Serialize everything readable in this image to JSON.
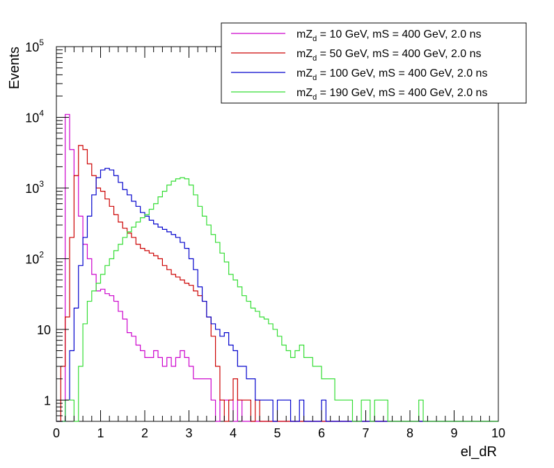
{
  "chart_data": {
    "type": "line",
    "title": "",
    "xlabel": "el_dR",
    "ylabel": "Events",
    "xlim": [
      0,
      10
    ],
    "ylim": [
      0.5,
      100000
    ],
    "yscale": "log",
    "bin_width": 0.1,
    "x_ticks": [
      "0",
      "1",
      "2",
      "3",
      "4",
      "5",
      "6",
      "7",
      "8",
      "9",
      "10"
    ],
    "y_ticks": [
      {
        "value": 1,
        "base": "1",
        "exp": ""
      },
      {
        "value": 10,
        "base": "10",
        "exp": ""
      },
      {
        "value": 100,
        "base": "10",
        "exp": "2"
      },
      {
        "value": 1000,
        "base": "10",
        "exp": "3"
      },
      {
        "value": 10000,
        "base": "10",
        "exp": "4"
      },
      {
        "value": 100000,
        "base": "10",
        "exp": "5"
      }
    ],
    "legend_position": "top-right",
    "series": [
      {
        "name": "mZd = 10 GeV, mS = 400 GeV, 2.0 ns",
        "legend_main": "mZ",
        "legend_sub": "d",
        "legend_rest": " = 10 GeV, mS = 400 GeV, 2.0 ns",
        "color": "#cc00cc",
        "values": [
          0,
          0,
          11000,
          3500,
          1500,
          400,
          160,
          100,
          60,
          35,
          37,
          32,
          30,
          25,
          18,
          14,
          9,
          8,
          6,
          5,
          4,
          4,
          5,
          4,
          3,
          4,
          3,
          4,
          5,
          4,
          3,
          2,
          2,
          2,
          2,
          1,
          0,
          1,
          1,
          1,
          0,
          1,
          0,
          0,
          0,
          0,
          0,
          0,
          0,
          0,
          0,
          0,
          0,
          0,
          0,
          0,
          0,
          0,
          0,
          0,
          0,
          0,
          0,
          0,
          0,
          0,
          0,
          0,
          0,
          0,
          0,
          0,
          0,
          0,
          0,
          0,
          0,
          0,
          0,
          0,
          0,
          0,
          0,
          0,
          0,
          0,
          0,
          0,
          0,
          0,
          0,
          0,
          0,
          0,
          0,
          0,
          0,
          0,
          0,
          0
        ]
      },
      {
        "name": "mZd = 50 GeV, mS = 400 GeV, 2.0 ns",
        "legend_main": "mZ",
        "legend_sub": "d",
        "legend_rest": " = 50 GeV, mS = 400 GeV, 2.0 ns",
        "color": "#cc0000",
        "values": [
          0,
          3,
          15,
          200,
          1500,
          4000,
          3500,
          2200,
          1500,
          1000,
          900,
          700,
          550,
          420,
          330,
          270,
          230,
          200,
          160,
          140,
          130,
          120,
          110,
          100,
          80,
          70,
          60,
          55,
          50,
          45,
          42,
          35,
          30,
          25,
          15,
          8,
          3,
          1,
          0,
          1,
          2,
          1,
          1,
          1,
          0,
          1,
          0,
          0,
          0,
          0,
          0,
          0,
          0,
          0,
          0,
          0,
          0,
          0,
          0,
          0,
          0,
          0,
          0,
          0,
          0,
          0,
          0,
          0,
          0,
          0,
          0,
          0,
          0,
          0,
          0,
          0,
          0,
          0,
          0,
          0,
          0,
          0,
          0,
          0,
          0,
          0,
          0,
          0,
          0,
          0,
          0,
          0,
          0,
          0,
          0,
          0,
          0,
          0,
          0,
          0
        ]
      },
      {
        "name": "mZd = 100 GeV, mS = 400 GeV, 2.0 ns",
        "legend_main": "mZ",
        "legend_sub": "d",
        "legend_rest": " = 100 GeV, mS = 400 GeV, 2.0 ns",
        "color": "#0000cc",
        "values": [
          0,
          0,
          1,
          5,
          20,
          80,
          200,
          400,
          800,
          1400,
          1800,
          1900,
          1800,
          1500,
          1200,
          950,
          800,
          650,
          550,
          450,
          400,
          350,
          310,
          280,
          260,
          240,
          220,
          200,
          170,
          140,
          100,
          70,
          40,
          25,
          15,
          12,
          10,
          8,
          9,
          6,
          5,
          3,
          3,
          2,
          2,
          1,
          1,
          1,
          1,
          0,
          1,
          1,
          1,
          0,
          0,
          1,
          0,
          0,
          0,
          0,
          1,
          0,
          0,
          0,
          0,
          0,
          0,
          0,
          0,
          0,
          0,
          0,
          0,
          0,
          0,
          0,
          0,
          0,
          0,
          0,
          0,
          0,
          0,
          0,
          0,
          0,
          0,
          0,
          0,
          0,
          0,
          0,
          0,
          0,
          0,
          0,
          0,
          0,
          0,
          0
        ]
      },
      {
        "name": "mZd = 190 GeV, mS = 400 GeV, 2.0 ns",
        "legend_main": "mZ",
        "legend_sub": "d",
        "legend_rest": " = 190 GeV, mS = 400 GeV, 2.0 ns",
        "color": "#33dd33",
        "values": [
          0,
          0,
          1,
          1,
          0,
          3,
          12,
          25,
          35,
          45,
          60,
          80,
          100,
          130,
          160,
          200,
          240,
          280,
          330,
          380,
          420,
          500,
          600,
          750,
          900,
          1100,
          1250,
          1350,
          1400,
          1350,
          1100,
          800,
          550,
          400,
          300,
          220,
          170,
          120,
          90,
          60,
          50,
          40,
          30,
          25,
          20,
          18,
          15,
          14,
          12,
          10,
          8,
          6,
          5,
          4,
          5,
          6,
          4,
          4,
          3,
          3,
          2,
          2,
          2,
          1,
          1,
          1,
          1,
          0,
          0,
          1,
          1,
          0,
          1,
          1,
          1,
          0,
          0,
          0,
          0,
          0,
          0,
          0,
          1,
          0,
          0,
          0,
          0,
          0,
          0,
          0,
          0,
          0,
          0,
          0,
          0,
          0,
          0,
          0,
          0,
          0
        ]
      }
    ]
  }
}
